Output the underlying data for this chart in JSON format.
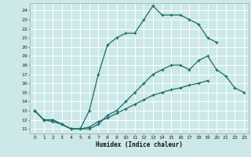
{
  "title": "",
  "xlabel": "Humidex (Indice chaleur)",
  "bg_color": "#cce8e8",
  "grid_color": "#ffffff",
  "line_color": "#1a6b6b",
  "xlim": [
    -0.5,
    23.5
  ],
  "ylim": [
    10.5,
    24.8
  ],
  "yticks": [
    11,
    12,
    13,
    14,
    15,
    16,
    17,
    18,
    19,
    20,
    21,
    22,
    23,
    24
  ],
  "xticks": [
    0,
    1,
    2,
    3,
    4,
    5,
    6,
    7,
    8,
    9,
    10,
    11,
    12,
    13,
    14,
    15,
    16,
    17,
    18,
    19,
    20,
    21,
    22,
    23
  ],
  "curve2_x": [
    0,
    1,
    2,
    3,
    4,
    5,
    6,
    7,
    8,
    9,
    10,
    11,
    12,
    13,
    14,
    15,
    16,
    17,
    18,
    19,
    20
  ],
  "curve2_y": [
    13,
    12,
    12,
    11.5,
    11,
    11,
    13,
    17,
    20.2,
    21,
    21.5,
    21.5,
    23,
    24.5,
    23.5,
    23.5,
    23.5,
    23,
    22.5,
    21,
    20.5
  ],
  "curve1_x": [
    0,
    1,
    2,
    3,
    4,
    5,
    6,
    7,
    8,
    9,
    10,
    11,
    12,
    13,
    14,
    15,
    16,
    17,
    18,
    19,
    20,
    21,
    22,
    23
  ],
  "curve1_y": [
    13,
    12,
    12,
    11.5,
    11,
    11,
    11,
    11.5,
    12.5,
    13,
    14,
    15,
    16,
    17,
    17.5,
    18,
    18,
    17.5,
    18.5,
    19,
    17.5,
    16.8,
    15.5,
    15
  ],
  "curve3_x": [
    0,
    1,
    2,
    3,
    4,
    5,
    6,
    7,
    8,
    9,
    10,
    11,
    12,
    13,
    14,
    15,
    16,
    17,
    18,
    19
  ],
  "curve3_y": [
    13,
    12,
    11.8,
    11.5,
    11,
    11,
    11.2,
    11.8,
    12.2,
    12.7,
    13.2,
    13.7,
    14.2,
    14.7,
    15.0,
    15.3,
    15.5,
    15.8,
    16.0,
    16.3
  ]
}
